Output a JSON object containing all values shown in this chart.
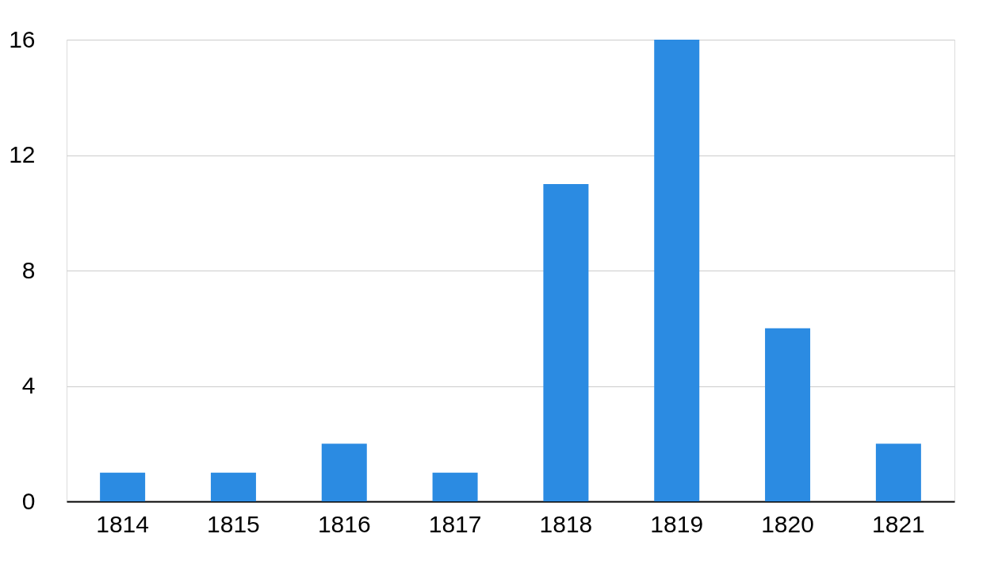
{
  "chart_data": {
    "type": "bar",
    "categories": [
      "1814",
      "1815",
      "1816",
      "1817",
      "1818",
      "1819",
      "1820",
      "1821"
    ],
    "values": [
      1,
      1,
      2,
      1,
      11,
      16,
      6,
      2
    ],
    "color": "#2b8be2",
    "ylim": [
      0,
      16
    ],
    "yticks": [
      0,
      4,
      8,
      12,
      16
    ],
    "grid": "y"
  }
}
